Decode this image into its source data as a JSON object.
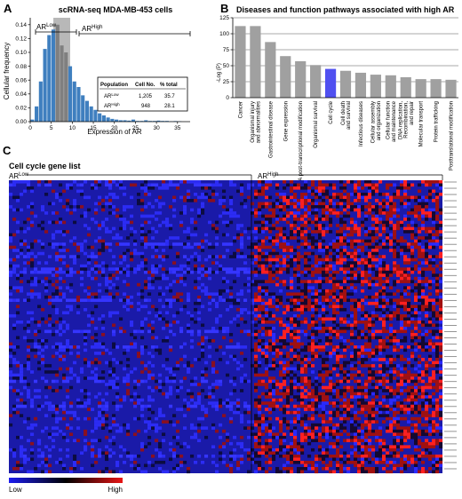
{
  "panel_a": {
    "letter": "A",
    "title": "scRNA-seq MDA-MB-453 cells",
    "region_low_label": "AR",
    "region_low_sup": "Low",
    "region_high_label": "AR",
    "region_high_sup": "High",
    "table": {
      "headers": [
        "Population",
        "Cell No.",
        "% total"
      ],
      "rows": [
        {
          "name": "AR",
          "sup": "Low",
          "count": "1,205",
          "pct": "35.7"
        },
        {
          "name": "AR",
          "sup": "High",
          "count": "948",
          "pct": "28.1"
        }
      ]
    }
  },
  "panel_b": {
    "letter": "B",
    "title": "Diseases and function pathways associated with high AR"
  },
  "panel_c": {
    "letter": "C",
    "subtitle": "Cell cycle gene list",
    "group_low_label": "AR",
    "group_low_sup": "Low",
    "group_high_label": "AR",
    "group_high_sup": "High",
    "legend_low": "Low",
    "legend_high": "High",
    "colors": {
      "low": "#1c1cf0",
      "mid": "#000000",
      "high": "#e81414"
    }
  },
  "chart_data": [
    {
      "type": "bar",
      "title": "scRNA-seq MDA-MB-453 cells",
      "xlabel": "Expression of AR",
      "ylabel": "Cellular frequency",
      "xlim": [
        0,
        38
      ],
      "ylim": [
        0,
        0.15
      ],
      "xticks": [
        0,
        5,
        10,
        15,
        20,
        25,
        30,
        35
      ],
      "yticks": [
        0,
        0.02,
        0.04,
        0.06,
        0.08,
        0.1,
        0.12,
        0.14
      ],
      "ytick_labels": [
        "0.00",
        "0.02",
        "0.04",
        "0.06",
        "0.08",
        "0.10",
        "0.12",
        "0.14"
      ],
      "x": [
        0.5,
        1.5,
        2.5,
        3.5,
        4.5,
        5.5,
        6.5,
        7.5,
        8.5,
        9.5,
        10.5,
        11.5,
        12.5,
        13.5,
        14.5,
        15.5,
        16.5,
        17.5,
        18.5,
        19.5,
        20.5,
        21.5,
        22.5,
        23.5,
        24.5,
        25.5,
        26.5,
        27.5,
        28.5,
        29.5,
        30.5,
        31.5,
        32.5,
        33.5,
        34.5,
        35.5
      ],
      "values": [
        0.003,
        0.022,
        0.058,
        0.105,
        0.125,
        0.133,
        0.14,
        0.11,
        0.1,
        0.08,
        0.058,
        0.05,
        0.038,
        0.03,
        0.022,
        0.017,
        0.012,
        0.009,
        0.006,
        0.004,
        0.003,
        0.002,
        0.002,
        0.0015,
        0.003,
        0.001,
        0.001,
        0.002,
        0.001,
        0.001,
        0.0015,
        0.001,
        0.001,
        0.0005,
        0.0008,
        0.0005
      ],
      "highlight_range": [
        5.5,
        9.5
      ],
      "bar_color": "#3f7fbf",
      "highlight_color": "#7f7f7f",
      "regions": [
        {
          "name": "AR Low",
          "range": [
            0,
            5.5
          ]
        },
        {
          "name": "AR High",
          "range": [
            10,
            38
          ]
        }
      ]
    },
    {
      "type": "bar",
      "title": "Diseases and function pathways associated with high AR",
      "ylabel": "-Log (P)",
      "ylim": [
        0,
        125
      ],
      "yticks": [
        0,
        25,
        50,
        75,
        100,
        125
      ],
      "categories": [
        "Cancer",
        "Organismal injury and abnormalities",
        "Gastrointestinal disease",
        "Gene expression",
        "RNA post-transcriptional modification",
        "Organismal survival",
        "Cell cycle",
        "Cell death and survival",
        "Infectious diseases",
        "Cellular assembly and organization",
        "Cellular function and maintenance",
        "DNA replication, Recombination, and repair",
        "Molecular transport",
        "Protein trafficking",
        "Posttranslational modification"
      ],
      "values": [
        112,
        112,
        87,
        65,
        57,
        51,
        45,
        42,
        39,
        36,
        35,
        32,
        29,
        29,
        28
      ],
      "highlight": "Cell cycle",
      "bar_color": "#a0a0a0",
      "highlight_color": "#5050f0"
    }
  ]
}
